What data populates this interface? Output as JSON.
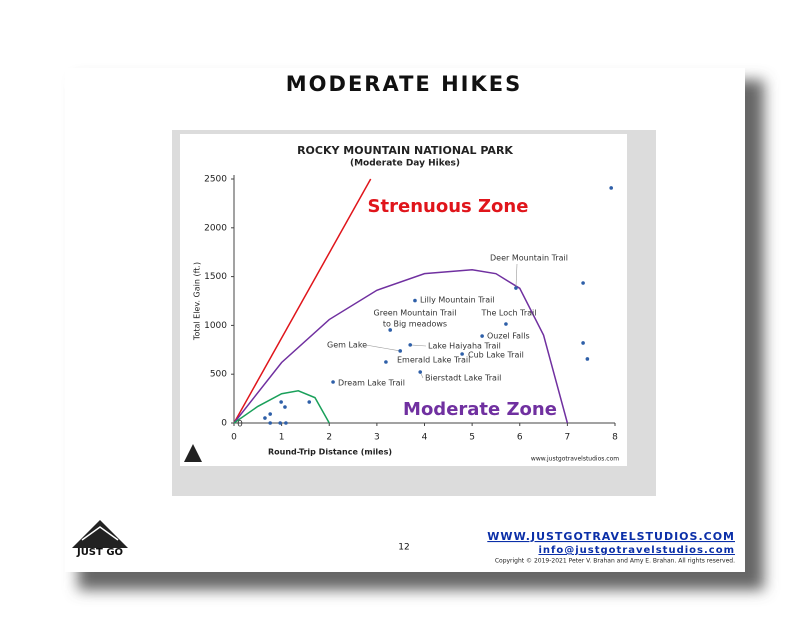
{
  "slide": {
    "title": "MODERATE HIKES",
    "page_number": "12",
    "website": "WWW.JUSTGOTRAVELSTUDIOS.COM",
    "email": "info@justgotravelstudios.com",
    "copyright": "Copyright © 2019-2021 Peter V. Brahan and Amy E. Brahan.  All rights reserved.",
    "logo": "JUST GO"
  },
  "chart_data": {
    "type": "scatter",
    "title": "ROCKY MOUNTAIN NATIONAL PARK",
    "subtitle": "(Moderate Day Hikes)",
    "x_label": "Round-Trip Distance (miles)",
    "y_label": "Total Elev. Gain (ft.)",
    "xlim": [
      0,
      8
    ],
    "xticks": [
      0,
      1,
      2,
      3,
      4,
      5,
      6,
      7,
      8
    ],
    "ylim": [
      0,
      2500
    ],
    "yticks": [
      0,
      500,
      1000,
      1500,
      2000,
      2500
    ],
    "color": "#2e5fa8",
    "x": [
      2.08,
      3.19,
      3.49,
      3.28,
      3.7,
      3.8,
      3.91,
      4.79,
      5.21,
      5.71,
      5.92,
      7.92,
      7.33,
      7.33,
      7.42,
      0.65,
      0.76,
      0.76,
      0.99,
      1.07,
      0.97,
      1.09,
      1.58
    ],
    "values": [
      420,
      625,
      738,
      953,
      800,
      1254,
      522,
      707,
      891,
      1014,
      1383,
      2408,
      1434,
      820,
      656,
      51,
      92,
      0,
      215,
      164,
      0,
      0,
      215
    ],
    "point_labels": [
      "Dream Lake Trail",
      "Emerald Lake Trail",
      "Gem Lake",
      [
        "Green Mountain Trail",
        "to Big meadows"
      ],
      "Lake Haiyaha Trail",
      "Lilly Mountain Trail",
      "Bierstadt Lake Trail",
      "Cub Lake Trail",
      "Ouzel Falls",
      "The Loch Trail",
      "Deer Mountain Trail",
      null,
      null,
      null,
      null,
      null,
      null,
      null,
      null,
      null,
      null,
      null,
      null
    ],
    "curves": [
      {
        "color": "#e0151b",
        "x": [
          0,
          2.87
        ],
        "values": [
          0,
          2500
        ]
      },
      {
        "color": "#7030a0",
        "x": [
          0,
          1,
          2,
          3,
          4,
          5,
          5.5,
          6,
          6.5,
          7
        ],
        "values": [
          0,
          620,
          1060,
          1360,
          1530,
          1570,
          1530,
          1380,
          900,
          0
        ]
      },
      {
        "color": "#1aa05a",
        "x": [
          0,
          0.5,
          1,
          1.35,
          1.7,
          2
        ],
        "values": [
          0,
          170,
          300,
          330,
          260,
          0
        ]
      }
    ],
    "annotations": [
      {
        "text": "Strenuous Zone",
        "color": "#e0151b"
      },
      {
        "text": "Moderate Zone",
        "color": "#7030a0"
      },
      {
        "text": "0",
        "color": "#333333"
      },
      {
        "text": "www.justgotravelstudios.com",
        "color": "#222222"
      }
    ]
  }
}
